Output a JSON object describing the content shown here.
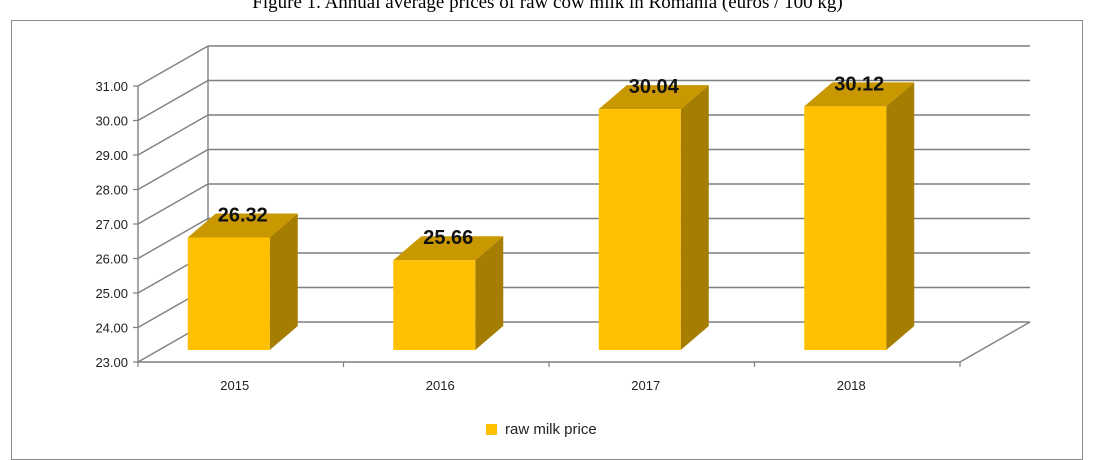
{
  "caption": "Figure 1. Annual average prices of raw cow milk in Romania (euros / 100 kg)",
  "chart_data": {
    "type": "bar",
    "three_d": true,
    "categories": [
      "2015",
      "2016",
      "2017",
      "2018"
    ],
    "series": [
      {
        "name": "raw milk price",
        "values": [
          26.32,
          25.66,
          30.04,
          30.12
        ],
        "color": "#FFC000",
        "side_color": "#A57D00",
        "top_color": "#C99700"
      }
    ],
    "data_labels": [
      "26.32",
      "25.66",
      "30.04",
      "30.12"
    ],
    "ylim": [
      23,
      31
    ],
    "yticks": [
      "23.00",
      "24.00",
      "25.00",
      "26.00",
      "27.00",
      "28.00",
      "29.00",
      "30.00",
      "31.00"
    ],
    "grid": true,
    "legend_position": "bottom",
    "title": "",
    "xlabel": "",
    "ylabel": ""
  }
}
